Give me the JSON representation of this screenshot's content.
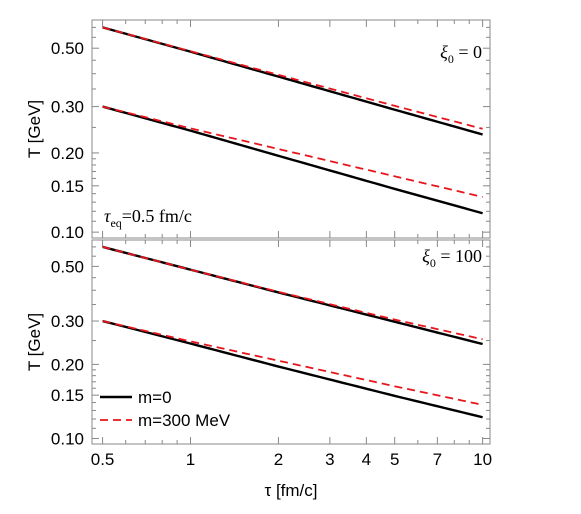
{
  "chart_data": [
    {
      "type": "line",
      "x_scale": "log",
      "y_scale": "log",
      "xlim": [
        0.46,
        10.6
      ],
      "ylim": [
        0.095,
        0.64
      ],
      "ylabel": "T [GeV]",
      "yticks": [
        0.1,
        0.15,
        0.2,
        0.3,
        0.5
      ],
      "ytick_labels": [
        "0.10",
        "0.15",
        "0.20",
        "0.30",
        "0.50"
      ],
      "annotation": {
        "symbol": "ξ",
        "subscript": "0",
        "rest": " = 0"
      },
      "annotation2": {
        "symbol": "τ",
        "subscript": "eq",
        "rest": "=0.5 fm/c"
      },
      "series": [
        {
          "name": "m=0",
          "group": "upper",
          "style": "solid",
          "color": "#000000",
          "x": [
            0.5,
            1,
            2,
            5,
            10
          ],
          "y": [
            0.6,
            0.485,
            0.39,
            0.292,
            0.235
          ]
        },
        {
          "name": "m=300 MeV",
          "group": "upper",
          "style": "dashed",
          "color": "#e8141c",
          "x": [
            0.5,
            1,
            2,
            5,
            10
          ],
          "y": [
            0.6,
            0.487,
            0.396,
            0.302,
            0.247
          ]
        },
        {
          "name": "m=0",
          "group": "lower",
          "style": "solid",
          "color": "#000000",
          "x": [
            0.5,
            1,
            2,
            5,
            10
          ],
          "y": [
            0.3,
            0.243,
            0.195,
            0.146,
            0.118
          ]
        },
        {
          "name": "m=300 MeV",
          "group": "lower",
          "style": "dashed",
          "color": "#e8141c",
          "x": [
            0.5,
            1,
            2,
            5,
            10
          ],
          "y": [
            0.3,
            0.248,
            0.207,
            0.163,
            0.136
          ]
        }
      ]
    },
    {
      "type": "line",
      "x_scale": "log",
      "y_scale": "log",
      "xlim": [
        0.46,
        10.6
      ],
      "ylim": [
        0.095,
        0.64
      ],
      "xlabel": "τ [fm/c]",
      "ylabel": "T [GeV]",
      "xticks": [
        0.5,
        1,
        2,
        3,
        4,
        5,
        7,
        10
      ],
      "xtick_labels": [
        "0.5",
        "1",
        "2",
        "3",
        "4",
        "5",
        "7",
        "10"
      ],
      "yticks": [
        0.1,
        0.15,
        0.2,
        0.3,
        0.5
      ],
      "ytick_labels": [
        "0.10",
        "0.15",
        "0.20",
        "0.30",
        "0.50"
      ],
      "annotation": {
        "symbol": "ξ",
        "subscript": "0",
        "rest": " = 100"
      },
      "legend": {
        "placement": "bottom-left",
        "entries": [
          "m=0",
          "m=300 MeV"
        ]
      },
      "series": [
        {
          "name": "m=0",
          "group": "upper",
          "style": "solid",
          "color": "#000000",
          "x": [
            0.5,
            1,
            2,
            5,
            10
          ],
          "y": [
            0.6,
            0.485,
            0.392,
            0.298,
            0.242
          ]
        },
        {
          "name": "m=300 MeV",
          "group": "upper",
          "style": "dashed",
          "color": "#e8141c",
          "x": [
            0.5,
            1,
            2,
            5,
            10
          ],
          "y": [
            0.6,
            0.485,
            0.394,
            0.304,
            0.253
          ]
        },
        {
          "name": "m=0",
          "group": "lower",
          "style": "solid",
          "color": "#000000",
          "x": [
            0.5,
            1,
            2,
            5,
            10
          ],
          "y": [
            0.3,
            0.243,
            0.196,
            0.149,
            0.122
          ]
        },
        {
          "name": "m=300 MeV",
          "group": "lower",
          "style": "dashed",
          "color": "#e8141c",
          "x": [
            0.5,
            1,
            2,
            5,
            10
          ],
          "y": [
            0.3,
            0.248,
            0.207,
            0.163,
            0.137
          ]
        }
      ]
    }
  ]
}
